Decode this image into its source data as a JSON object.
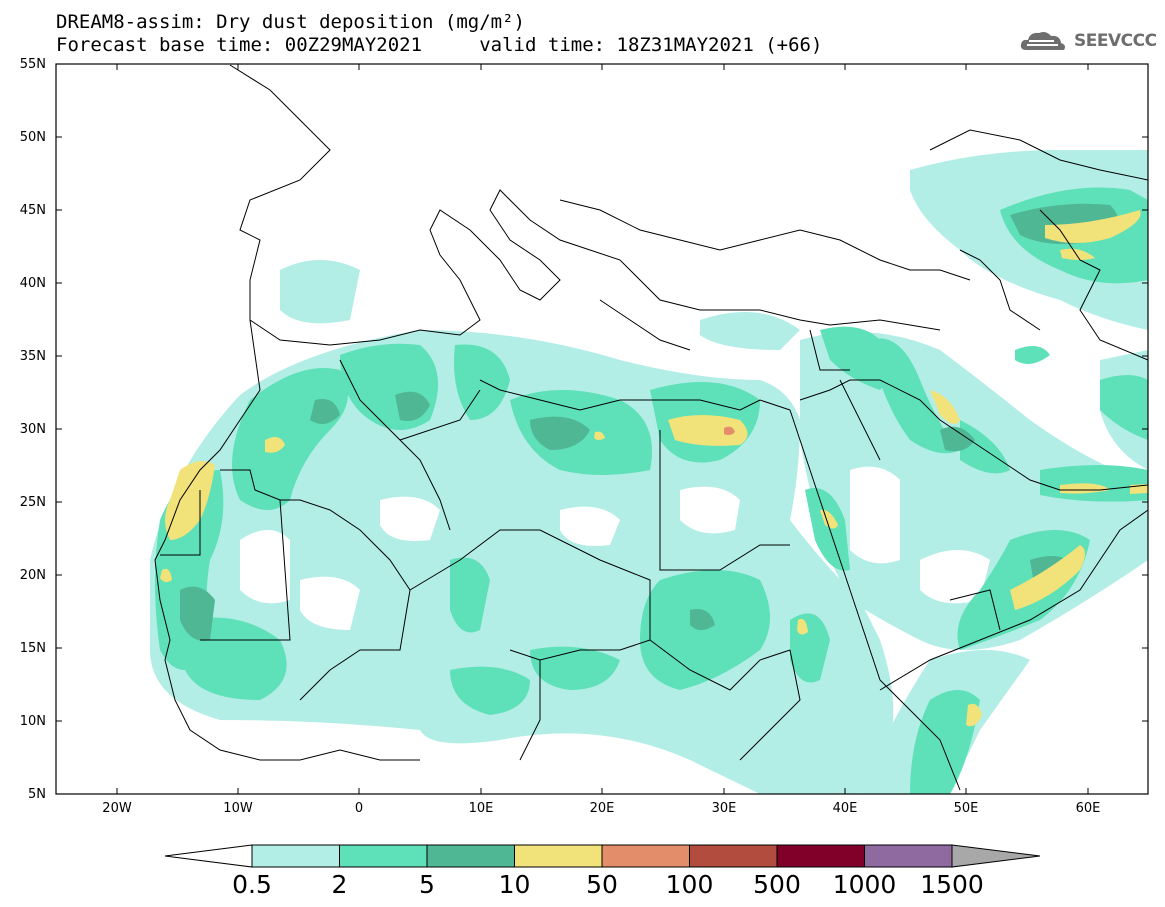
{
  "header": {
    "title_line1": "DREAM8-assim: Dry dust deposition (mg/m²)",
    "title_line2": "Forecast base time: 00Z29MAY2021     valid time: 18Z31MAY2021 (+66)",
    "logo_text": "SEEVCCC",
    "logo_icon": "cloud-icon"
  },
  "map": {
    "projection": "lat-lon",
    "lon_range": [
      -25,
      65
    ],
    "lat_range": [
      5,
      55
    ],
    "lat_ticks": [
      "55N",
      "50N",
      "45N",
      "40N",
      "35N",
      "30N",
      "25N",
      "20N",
      "15N",
      "10N",
      "5N"
    ],
    "lon_ticks": [
      "20W",
      "10W",
      "0",
      "10E",
      "20E",
      "30E",
      "40E",
      "50E",
      "60E"
    ],
    "field_colors": [
      "#b2eee6",
      "#5ee0b8",
      "#4fb793",
      "#f2e27a",
      "#e48d6a"
    ]
  },
  "colorbar": {
    "labels": [
      "0.5",
      "2",
      "5",
      "10",
      "50",
      "100",
      "500",
      "1000",
      "1500"
    ],
    "colors": [
      "#b2eee6",
      "#5ee0b8",
      "#4fb793",
      "#f2e27a",
      "#e48d6a",
      "#b24c3e",
      "#80002a",
      "#8e6aa0"
    ],
    "under_color": "#ffffff",
    "over_color": "#a8a8a8"
  }
}
